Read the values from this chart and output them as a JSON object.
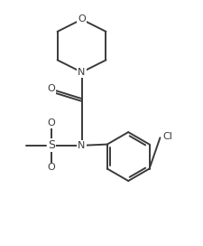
{
  "background_color": "#ffffff",
  "line_color": "#3a3a3a",
  "line_width": 1.4,
  "font_size": 8,
  "figsize": [
    2.26,
    2.72
  ],
  "dpi": 100,
  "xlim": [
    0,
    10
  ],
  "ylim": [
    0,
    12
  ]
}
